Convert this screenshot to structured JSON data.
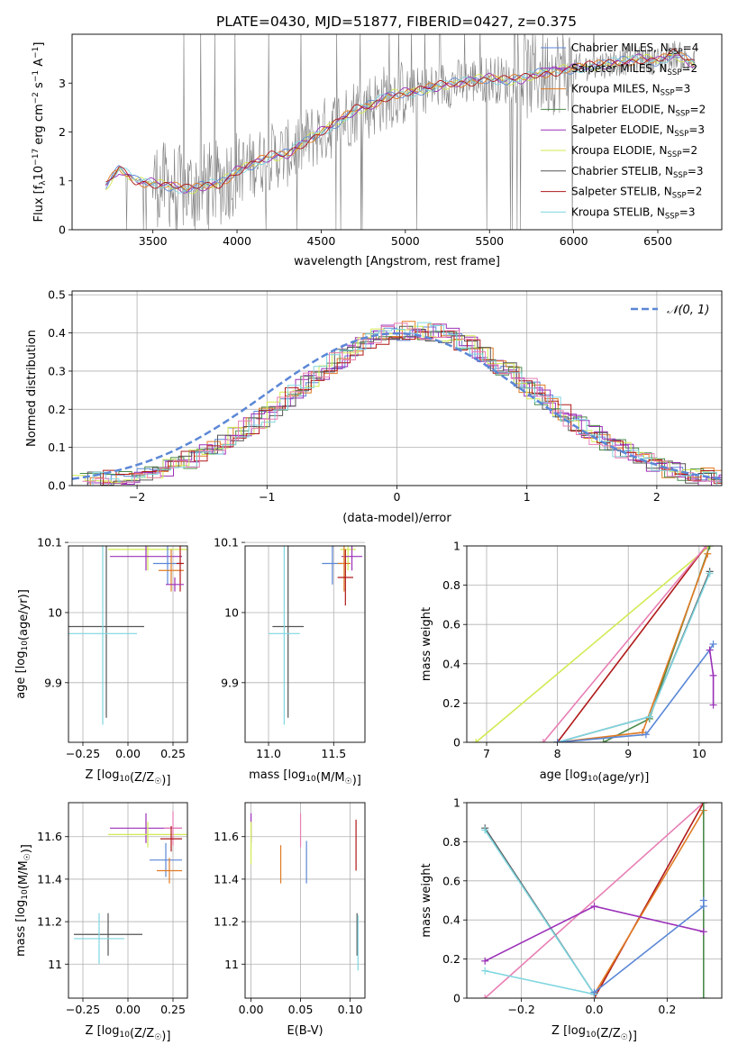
{
  "figure_title": "PLATE=0430, MJD=51877, FIBERID=0427, z=0.375",
  "colors": {
    "chabrier_miles": "#5b87d6",
    "salpeter_miles": "#9e2fb8",
    "kroupa_miles": "#e07b24",
    "chabrier_elodie": "#4a8a4a",
    "salpeter_elodie": "#9b30b8",
    "kroupa_elodie": "#d2ea52",
    "chabrier_stelib": "#555555",
    "salpeter_stelib": "#b01818",
    "kroupa_stelib": "#7fd6e0",
    "pink": "#e87fb4",
    "data": "#808080",
    "gauss": "#5b87d6"
  },
  "chart_data": [
    {
      "id": "spectrum",
      "type": "line",
      "xlabel": "wavelength [Angstrom, rest frame]",
      "ylabel": "Flux [f",
      "ylabel_sub": "λ",
      "ylabel_mid": "10",
      "ylabel_sup1": "−17",
      "ylabel_mid2": " erg cm",
      "ylabel_sup2": "−2",
      "ylabel_mid3": " s",
      "ylabel_sup3": "−1",
      "ylabel_mid4": " A",
      "ylabel_sup4": "−1",
      "ylabel_end": "]",
      "xlim": [
        3020,
        6880
      ],
      "ylim": [
        0,
        4.0
      ],
      "xticks": [
        3500,
        4000,
        4500,
        5000,
        5500,
        6000,
        6500
      ],
      "yticks": [
        0,
        1,
        2,
        3
      ],
      "legend": [
        {
          "label": "Chabrier MILES, N",
          "sub": "SSP",
          "tail": "=4",
          "color_key": "chabrier_miles"
        },
        {
          "label": "Salpeter MILES, N",
          "sub": "SSP",
          "tail": "=2",
          "color_key": "salpeter_miles"
        },
        {
          "label": "Kroupa MILES, N",
          "sub": "SSP",
          "tail": "=3",
          "color_key": "kroupa_miles"
        },
        {
          "label": "Chabrier ELODIE, N",
          "sub": "SSP",
          "tail": "=2",
          "color_key": "chabrier_elodie"
        },
        {
          "label": "Salpeter ELODIE, N",
          "sub": "SSP",
          "tail": "=3",
          "color_key": "salpeter_elodie"
        },
        {
          "label": "Kroupa ELODIE, N",
          "sub": "SSP",
          "tail": "=2",
          "color_key": "kroupa_elodie"
        },
        {
          "label": "Chabrier STELIB, N",
          "sub": "SSP",
          "tail": "=3",
          "color_key": "chabrier_stelib"
        },
        {
          "label": "Salpeter STELIB, N",
          "sub": "SSP",
          "tail": "=2",
          "color_key": "salpeter_stelib"
        },
        {
          "label": "Kroupa STELIB, N",
          "sub": "SSP",
          "tail": "=3",
          "color_key": "kroupa_stelib"
        }
      ],
      "model_trend": [
        [
          3220,
          0.9
        ],
        [
          3300,
          1.25
        ],
        [
          3400,
          1.0
        ],
        [
          3500,
          0.95
        ],
        [
          3600,
          0.9
        ],
        [
          3700,
          0.82
        ],
        [
          3800,
          0.9
        ],
        [
          3900,
          0.95
        ],
        [
          4000,
          1.2
        ],
        [
          4100,
          1.35
        ],
        [
          4200,
          1.5
        ],
        [
          4300,
          1.55
        ],
        [
          4400,
          1.8
        ],
        [
          4500,
          2.0
        ],
        [
          4600,
          2.2
        ],
        [
          4700,
          2.45
        ],
        [
          4800,
          2.55
        ],
        [
          4900,
          2.75
        ],
        [
          5000,
          2.8
        ],
        [
          5100,
          2.85
        ],
        [
          5200,
          2.95
        ],
        [
          5300,
          3.0
        ],
        [
          5400,
          3.05
        ],
        [
          5500,
          3.1
        ],
        [
          5600,
          3.05
        ],
        [
          5700,
          3.1
        ],
        [
          5800,
          3.2
        ],
        [
          5900,
          3.25
        ],
        [
          6000,
          3.3
        ],
        [
          6100,
          3.35
        ],
        [
          6200,
          3.4
        ],
        [
          6300,
          3.45
        ],
        [
          6400,
          3.5
        ],
        [
          6500,
          3.45
        ],
        [
          6600,
          3.6
        ],
        [
          6720,
          3.4
        ]
      ]
    },
    {
      "id": "residuals",
      "type": "histogram",
      "xlabel": "(data-model)/error",
      "ylabel": "Normed distribution",
      "xlim": [
        -2.5,
        2.5
      ],
      "ylim": [
        0,
        0.51
      ],
      "xticks": [
        -2,
        -1,
        0,
        1,
        2
      ],
      "yticks": [
        0.0,
        0.1,
        0.2,
        0.3,
        0.4,
        0.5
      ],
      "legend": [
        {
          "label": "𝒩(0, 1)",
          "color_key": "gauss",
          "dashed": true
        }
      ],
      "gaussian": {
        "mu": 0,
        "sigma": 1
      },
      "bin_width": 0.1
    },
    {
      "id": "age_vs_Z",
      "type": "errorbar",
      "xlabel": "Z [log",
      "xlabel_sub": "10",
      "xlabel_tail": "(Z/Z",
      "xlabel_sub2": "☉",
      "xlabel_end": ")]",
      "ylabel": "age  [log",
      "ylabel_sub": "10",
      "ylabel_tail": "(age/yr)]",
      "xlim": [
        -0.33,
        0.33
      ],
      "ylim": [
        9.815,
        10.095
      ],
      "xticks": [
        -0.25,
        0.0,
        0.25
      ],
      "xticklabels": [
        "−0.25",
        "0.00",
        "0.25"
      ],
      "yticks": [
        9.9,
        10.0,
        10.1
      ],
      "points": [
        {
          "x": 0.11,
          "y": 10.09,
          "xe": 0.22,
          "ye": 0.03,
          "color_key": "kroupa_elodie"
        },
        {
          "x": 0.1,
          "y": 10.08,
          "xe": 0.2,
          "ye": 0.02,
          "color_key": "salpeter_elodie"
        },
        {
          "x": 0.22,
          "y": 10.07,
          "xe": 0.08,
          "ye": 0.03,
          "color_key": "chabrier_miles"
        },
        {
          "x": 0.24,
          "y": 10.06,
          "xe": 0.07,
          "ye": 0.03,
          "color_key": "kroupa_miles"
        },
        {
          "x": 0.29,
          "y": 10.07,
          "xe": 0.02,
          "ye": 0.04,
          "color_key": "salpeter_stelib"
        },
        {
          "x": 0.26,
          "y": 10.04,
          "xe": 0.05,
          "ye": 0.01,
          "color_key": "salpeter_miles"
        },
        {
          "x": -0.12,
          "y": 9.98,
          "xe": 0.21,
          "ye": 0.13,
          "color_key": "chabrier_stelib"
        },
        {
          "x": -0.14,
          "y": 9.97,
          "xe": 0.19,
          "ye": 0.13,
          "color_key": "kroupa_stelib"
        }
      ]
    },
    {
      "id": "age_vs_mass",
      "type": "errorbar",
      "xlabel": "mass [log",
      "xlabel_sub": "10",
      "xlabel_tail": "(M/M",
      "xlabel_sub2": "☉",
      "xlabel_end": ")]",
      "xlim": [
        10.82,
        11.74
      ],
      "ylim": [
        9.815,
        10.095
      ],
      "xticks": [
        11.0,
        11.5
      ],
      "xticklabels": [
        "11.0",
        "11.5"
      ],
      "yticks": [
        9.9,
        10.0,
        10.1
      ],
      "points": [
        {
          "x": 11.61,
          "y": 10.09,
          "xe": 0.06,
          "ye": 0.03,
          "color_key": "kroupa_elodie"
        },
        {
          "x": 11.64,
          "y": 10.08,
          "xe": 0.08,
          "ye": 0.02,
          "color_key": "salpeter_elodie"
        },
        {
          "x": 11.49,
          "y": 10.07,
          "xe": 0.08,
          "ye": 0.03,
          "color_key": "chabrier_miles"
        },
        {
          "x": 11.58,
          "y": 10.07,
          "xe": 0.05,
          "ye": 0.04,
          "color_key": "kroupa_miles"
        },
        {
          "x": 11.59,
          "y": 10.05,
          "xe": 0.06,
          "ye": 0.04,
          "color_key": "salpeter_stelib"
        },
        {
          "x": 11.15,
          "y": 9.98,
          "xe": 0.12,
          "ye": 0.13,
          "color_key": "chabrier_stelib"
        },
        {
          "x": 11.12,
          "y": 9.97,
          "xe": 0.12,
          "ye": 0.13,
          "color_key": "kroupa_stelib"
        }
      ]
    },
    {
      "id": "weight_vs_age",
      "type": "line",
      "xlabel": "age  [log",
      "xlabel_sub": "10",
      "xlabel_tail": "(age/yr)]",
      "ylabel": "mass weight",
      "xlim": [
        6.72,
        10.32
      ],
      "ylim": [
        0,
        1.0
      ],
      "xticks": [
        7,
        8,
        9,
        10
      ],
      "yticks": [
        0.0,
        0.2,
        0.4,
        0.6,
        0.8,
        1.0
      ],
      "series": [
        {
          "color_key": "kroupa_elodie",
          "points": [
            [
              6.85,
              0
            ],
            [
              10.15,
              1.0
            ]
          ]
        },
        {
          "color_key": "salpeter_stelib",
          "points": [
            [
              8.0,
              0
            ],
            [
              10.1,
              1.0
            ]
          ]
        },
        {
          "color_key": "pink",
          "points": [
            [
              7.8,
              0
            ],
            [
              10.1,
              1.0
            ]
          ]
        },
        {
          "color_key": "chabrier_elodie",
          "points": [
            [
              8.65,
              0
            ],
            [
              9.3,
              0.12
            ],
            [
              10.15,
              1.0
            ]
          ]
        },
        {
          "color_key": "kroupa_miles",
          "points": [
            [
              8.0,
              0
            ],
            [
              9.2,
              0.05
            ],
            [
              10.12,
              0.96
            ]
          ]
        },
        {
          "color_key": "chabrier_stelib",
          "points": [
            [
              8.0,
              0
            ],
            [
              9.3,
              0.13
            ],
            [
              10.15,
              0.87
            ]
          ]
        },
        {
          "color_key": "kroupa_stelib",
          "points": [
            [
              8.0,
              0
            ],
            [
              9.3,
              0.13
            ],
            [
              10.15,
              0.86
            ]
          ]
        },
        {
          "color_key": "chabrier_miles",
          "points": [
            [
              8.0,
              0
            ],
            [
              9.25,
              0.04
            ],
            [
              10.15,
              0.47
            ],
            [
              10.2,
              0.5
            ]
          ]
        },
        {
          "color_key": "salpeter_elodie",
          "points": [
            [
              10.15,
              0.47
            ],
            [
              10.2,
              0.34
            ],
            [
              10.2,
              0.19
            ]
          ]
        }
      ]
    },
    {
      "id": "mass_vs_Z",
      "type": "errorbar",
      "xlabel": "Z [log",
      "xlabel_sub": "10",
      "xlabel_tail": "(Z/Z",
      "xlabel_sub2": "☉",
      "xlabel_end": ")]",
      "ylabel": "mass [log",
      "ylabel_sub": "10",
      "ylabel_tail": "(M/M",
      "ylabel_sub2": "☉",
      "ylabel_end": ")]",
      "xlim": [
        -0.33,
        0.33
      ],
      "ylim": [
        10.84,
        11.76
      ],
      "xticks": [
        -0.25,
        0.0,
        0.25
      ],
      "xticklabels": [
        "−0.25",
        "0.00",
        "0.25"
      ],
      "yticks": [
        11.0,
        11.2,
        11.4,
        11.6
      ],
      "points": [
        {
          "x": 0.1,
          "y": 11.64,
          "xe": 0.2,
          "ye": 0.07,
          "color_key": "salpeter_elodie"
        },
        {
          "x": 0.11,
          "y": 11.61,
          "xe": 0.22,
          "ye": 0.06,
          "color_key": "kroupa_elodie"
        },
        {
          "x": 0.25,
          "y": 11.64,
          "xe": 0.05,
          "ye": 0.08,
          "color_key": "pink"
        },
        {
          "x": 0.24,
          "y": 11.59,
          "xe": 0.06,
          "ye": 0.06,
          "color_key": "salpeter_stelib"
        },
        {
          "x": 0.21,
          "y": 11.49,
          "xe": 0.09,
          "ye": 0.08,
          "color_key": "chabrier_miles"
        },
        {
          "x": 0.23,
          "y": 11.44,
          "xe": 0.07,
          "ye": 0.06,
          "color_key": "kroupa_miles"
        },
        {
          "x": -0.11,
          "y": 11.14,
          "xe": 0.19,
          "ye": 0.1,
          "color_key": "chabrier_stelib"
        },
        {
          "x": -0.16,
          "y": 11.12,
          "xe": 0.14,
          "ye": 0.12,
          "color_key": "kroupa_stelib"
        }
      ]
    },
    {
      "id": "mass_vs_ebv",
      "type": "errorbar",
      "xlabel": "E(B-V)",
      "xlim": [
        -0.006,
        0.115
      ],
      "ylim": [
        10.84,
        11.76
      ],
      "xticks": [
        0.0,
        0.05,
        0.1
      ],
      "xticklabels": [
        "0.00",
        "0.05",
        "0.10"
      ],
      "yticks": [
        11.0,
        11.2,
        11.4,
        11.6
      ],
      "points": [
        {
          "x": 0.0,
          "y": 11.64,
          "xe": 0,
          "ye": 0.07,
          "color_key": "salpeter_elodie"
        },
        {
          "x": 0.0,
          "y": 11.57,
          "xe": 0,
          "ye": 0.1,
          "color_key": "kroupa_elodie"
        },
        {
          "x": 0.05,
          "y": 11.63,
          "xe": 0,
          "ye": 0.08,
          "color_key": "pink"
        },
        {
          "x": 0.03,
          "y": 11.47,
          "xe": 0,
          "ye": 0.09,
          "color_key": "kroupa_miles"
        },
        {
          "x": 0.056,
          "y": 11.48,
          "xe": 0,
          "ye": 0.1,
          "color_key": "chabrier_miles"
        },
        {
          "x": 0.106,
          "y": 11.56,
          "xe": 0,
          "ye": 0.12,
          "color_key": "salpeter_stelib"
        },
        {
          "x": 0.107,
          "y": 11.14,
          "xe": 0,
          "ye": 0.1,
          "color_key": "chabrier_stelib"
        },
        {
          "x": 0.108,
          "y": 11.1,
          "xe": 0,
          "ye": 0.13,
          "color_key": "kroupa_stelib"
        }
      ]
    },
    {
      "id": "weight_vs_Z",
      "type": "line",
      "xlabel": "Z [log",
      "xlabel_sub": "10",
      "xlabel_tail": "(Z/Z",
      "xlabel_sub2": "☉",
      "xlabel_end": ")]",
      "ylabel": "mass weight",
      "xlim": [
        -0.35,
        0.35
      ],
      "ylim": [
        0,
        1.0
      ],
      "xticks": [
        -0.2,
        0.0,
        0.2
      ],
      "xticklabels": [
        "−0.2",
        "0.0",
        "0.2"
      ],
      "yticks": [
        0.0,
        0.2,
        0.4,
        0.6,
        0.8,
        1.0
      ],
      "series": [
        {
          "color_key": "pink",
          "points": [
            [
              -0.3,
              0
            ],
            [
              0.3,
              1.0
            ]
          ]
        },
        {
          "color_key": "salpeter_stelib",
          "points": [
            [
              0.0,
              0.0
            ],
            [
              0.3,
              1.0
            ]
          ]
        },
        {
          "color_key": "kroupa_miles",
          "points": [
            [
              0.0,
              0.02
            ],
            [
              0.3,
              0.96
            ]
          ]
        },
        {
          "color_key": "chabrier_elodie",
          "points": [
            [
              0.3,
              0.0
            ],
            [
              0.3,
              1.0
            ]
          ]
        },
        {
          "color_key": "chabrier_stelib",
          "points": [
            [
              -0.3,
              0.87
            ],
            [
              0.0,
              0.02
            ]
          ]
        },
        {
          "color_key": "kroupa_stelib",
          "points": [
            [
              -0.3,
              0.86
            ],
            [
              0.0,
              0.02
            ],
            [
              -0.3,
              0.14
            ]
          ]
        },
        {
          "color_key": "salpeter_elodie",
          "points": [
            [
              -0.3,
              0.19
            ],
            [
              0.0,
              0.47
            ],
            [
              0.3,
              0.34
            ]
          ]
        },
        {
          "color_key": "chabrier_miles",
          "points": [
            [
              0.0,
              0.03
            ],
            [
              0.3,
              0.47
            ],
            [
              0.3,
              0.5
            ]
          ]
        }
      ]
    }
  ]
}
